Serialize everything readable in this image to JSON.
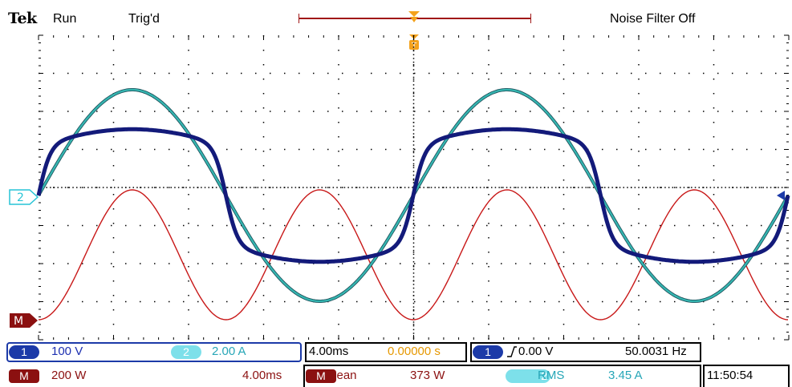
{
  "header": {
    "brand": "Tek",
    "acquisition_state": "Run",
    "trigger_state": "Trig'd",
    "noise_filter": "Noise Filter Off"
  },
  "markers": {
    "ch2_ground": "2",
    "math_ground": "M"
  },
  "channel1": {
    "badge": "1",
    "scale": "100 V",
    "color": "#1c2fb0"
  },
  "channel2": {
    "badge": "2",
    "scale": "2.00 A",
    "color": "#27a6b7"
  },
  "math": {
    "badge": "M",
    "scale": "200 W",
    "timebase": "4.00ms",
    "color": "#c81818"
  },
  "horizontal": {
    "timebase": "4.00ms",
    "trigger_position": "0.00000 s"
  },
  "trigger": {
    "source_badge": "1",
    "level": "0.00 V",
    "frequency": "50.0031 Hz"
  },
  "measurements": [
    {
      "source_badge": "M",
      "type": "Mean",
      "value": "373 W"
    },
    {
      "source_badge": "2",
      "type": "RMS",
      "value": "3.45 A"
    }
  ],
  "clock": "11:50:54",
  "colors": {
    "trigger_marker": "#f4a21c",
    "record_bar": "#a01818",
    "grid": "#000000"
  }
}
